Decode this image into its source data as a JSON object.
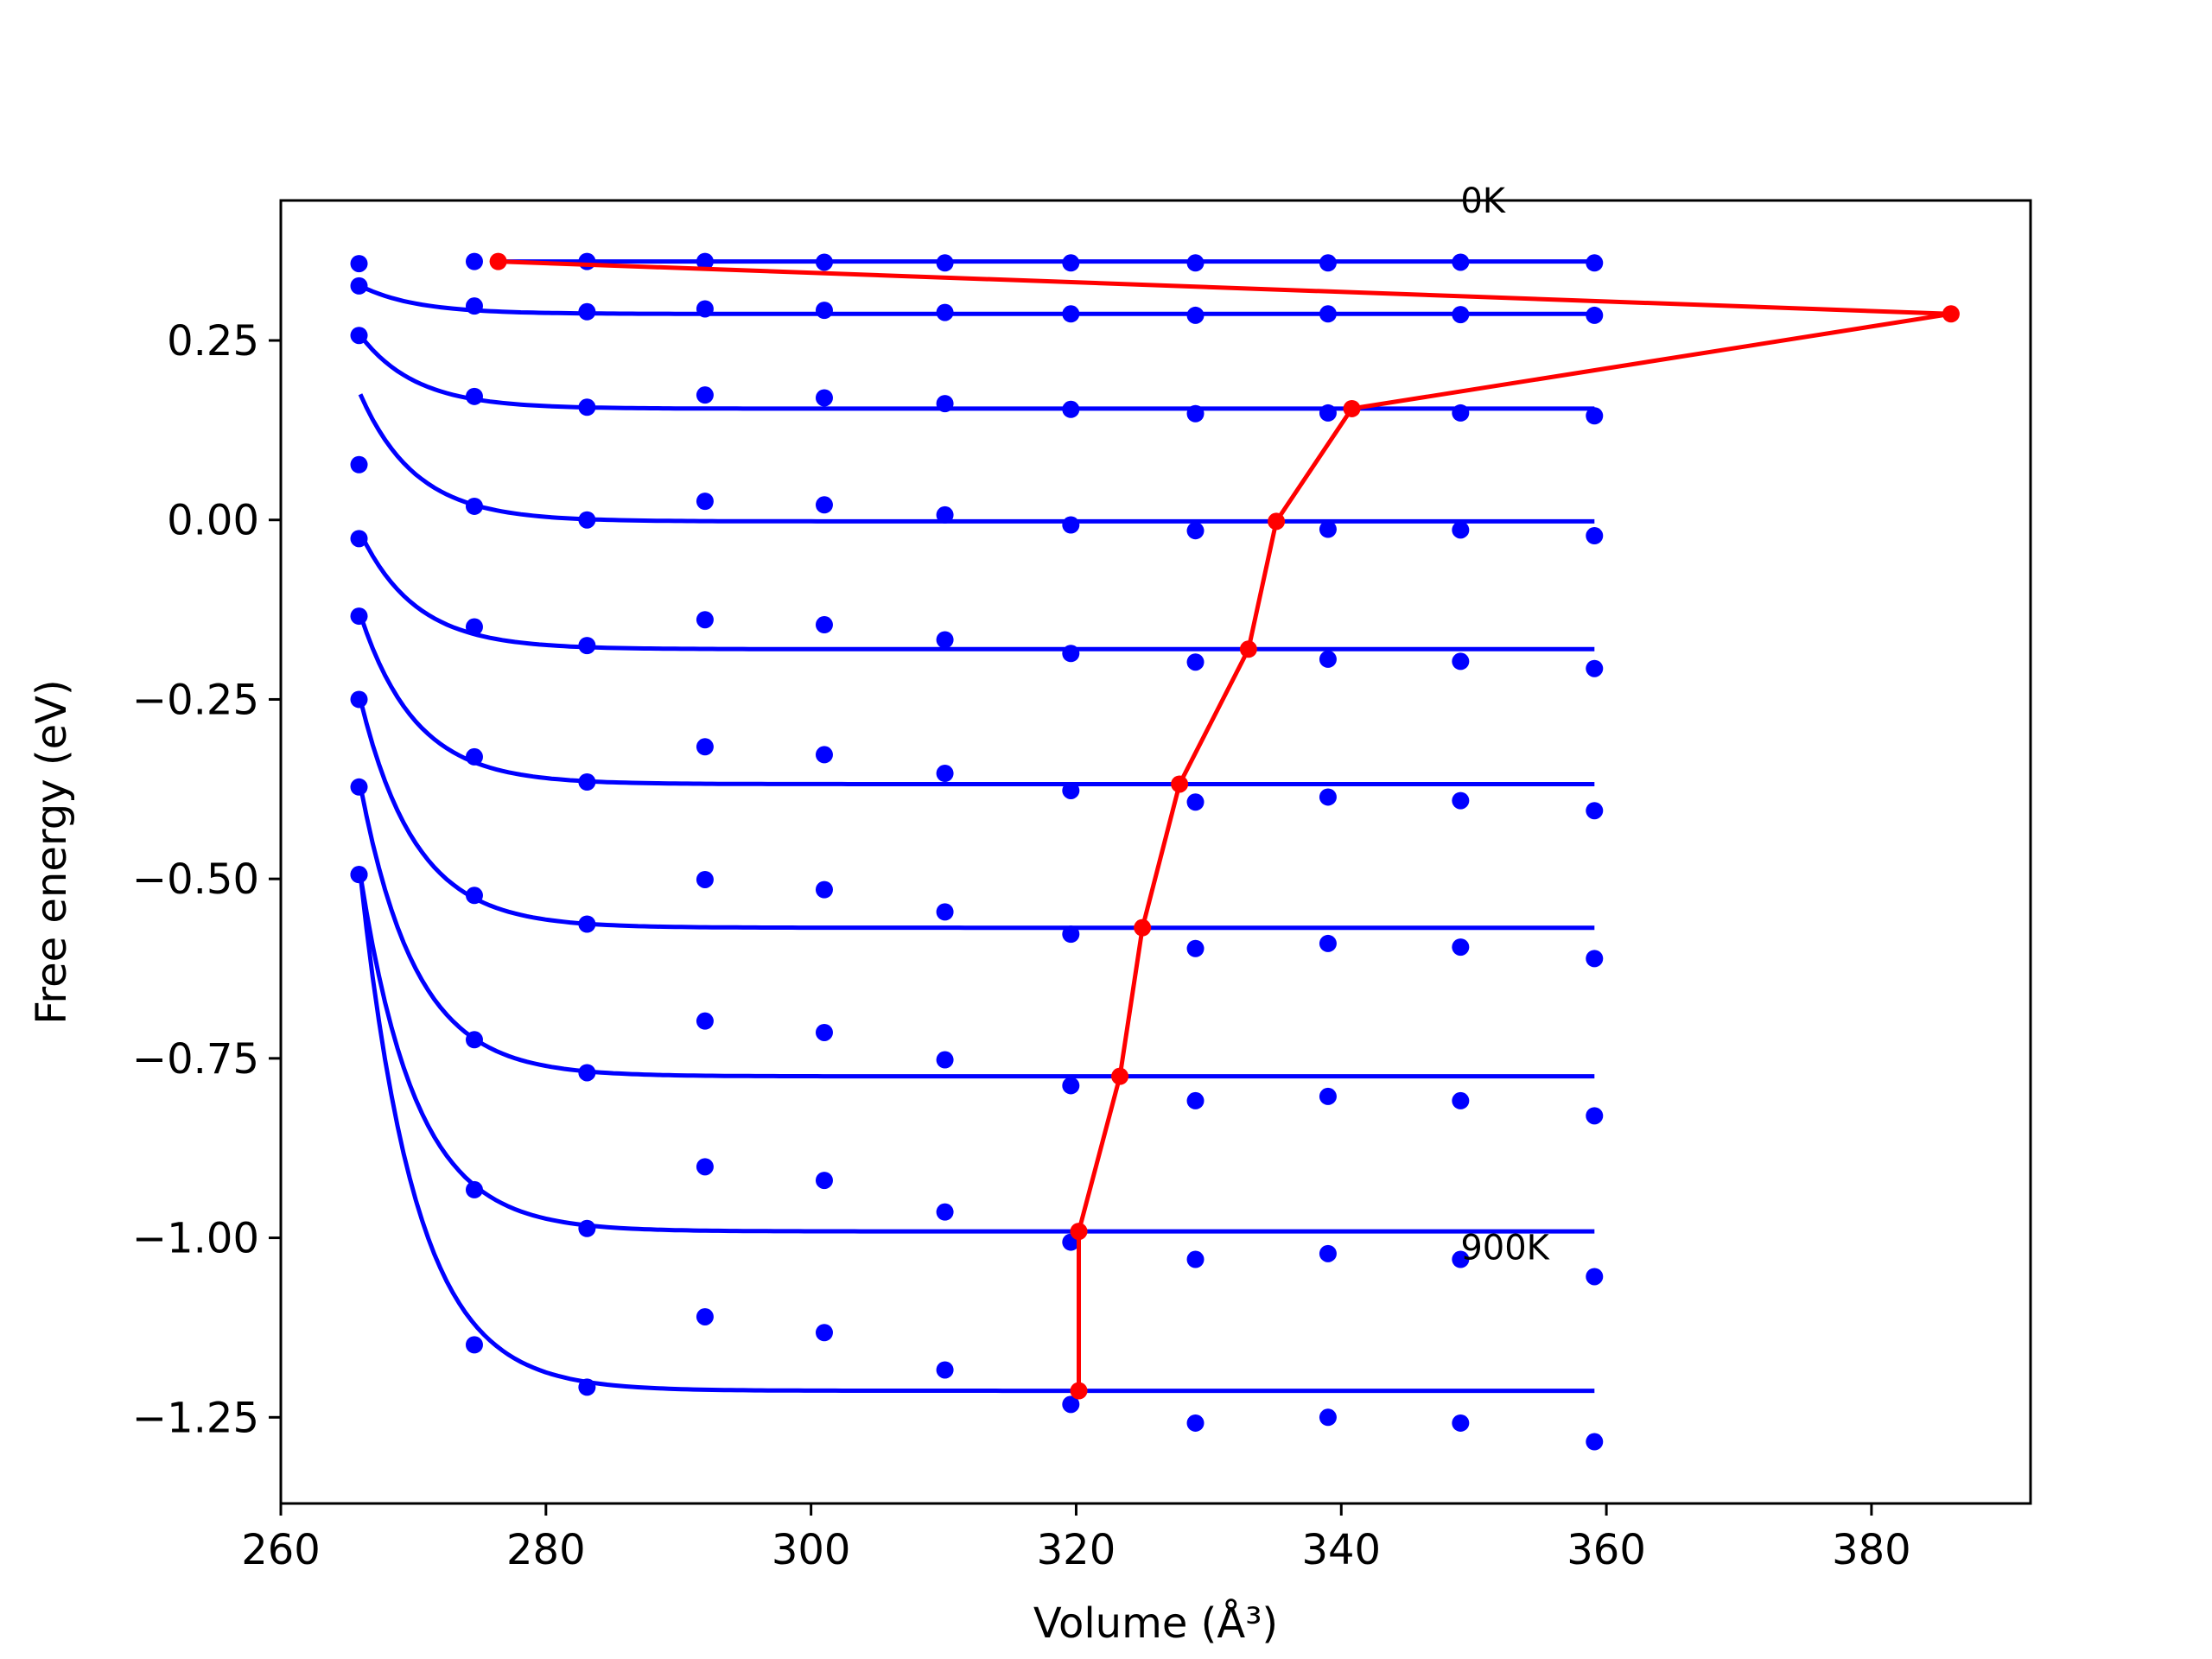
{
  "chart_data": {
    "type": "scatter",
    "xlabel": "Volume (Å³)",
    "ylabel": "Free energy (eV)",
    "xlim": [
      260,
      392
    ],
    "ylim": [
      -1.37,
      0.445
    ],
    "xticks": [
      260,
      280,
      300,
      320,
      340,
      360,
      380
    ],
    "xtick_labels": [
      "260",
      "280",
      "300",
      "320",
      "340",
      "360",
      "380"
    ],
    "yticks": [
      0.25,
      0.0,
      -0.25,
      -0.5,
      -0.75,
      -1.0,
      -1.25
    ],
    "ytick_labels": [
      "0.25",
      "0.00",
      "−0.25",
      "−0.50",
      "−0.75",
      "−1.00",
      "−1.25"
    ],
    "grid": false,
    "colors": {
      "points": "#0000ff",
      "fits": "#0000ff",
      "equilibrium": "#ff0000"
    },
    "annotations": [
      {
        "text": "0K",
        "x": 349,
        "y": 0.428
      },
      {
        "text": "900K",
        "x": 349,
        "y": -1.03
      }
    ],
    "volumes": [
      265.9,
      274.6,
      283.1,
      292.0,
      301.0,
      310.1,
      319.6,
      329.0,
      339.0,
      349.0,
      359.1
    ],
    "series": [
      {
        "values": [
          0.357,
          0.36,
          0.36,
          0.36,
          0.359,
          0.358,
          0.358,
          0.358,
          0.358,
          0.359,
          0.358
        ],
        "fit_floor": 0.36,
        "fit_v0": 276,
        "fit_amp": 0.0
      },
      {
        "values": [
          0.326,
          0.298,
          0.29,
          0.294,
          0.292,
          0.289,
          0.287,
          0.285,
          0.287,
          0.286,
          0.285
        ],
        "fit_floor": 0.287,
        "fit_v0": 266,
        "fit_amp": 0.039
      },
      {
        "values": [
          0.257,
          0.172,
          0.157,
          0.174,
          0.17,
          0.162,
          0.154,
          0.148,
          0.149,
          0.149,
          0.145
        ],
        "fit_floor": 0.155,
        "fit_v0": 266,
        "fit_amp": 0.102
      },
      {
        "values": [
          0.077,
          0.019,
          0.0,
          0.026,
          0.021,
          0.007,
          -0.007,
          -0.015,
          -0.013,
          -0.014,
          -0.022
        ],
        "fit_floor": -0.002,
        "fit_v0": 266,
        "fit_amp": 0.177
      },
      {
        "values": [
          -0.026,
          -0.149,
          -0.175,
          -0.139,
          -0.146,
          -0.167,
          -0.186,
          -0.198,
          -0.194,
          -0.197,
          -0.207
        ],
        "fit_floor": -0.18,
        "fit_v0": 266,
        "fit_amp": 0.162
      },
      {
        "values": [
          -0.134,
          -0.33,
          -0.365,
          -0.316,
          -0.327,
          -0.353,
          -0.377,
          -0.393,
          -0.386,
          -0.391,
          -0.405
        ],
        "fit_floor": -0.368,
        "fit_v0": 266,
        "fit_amp": 0.236
      },
      {
        "values": [
          -0.25,
          -0.523,
          -0.563,
          -0.501,
          -0.515,
          -0.546,
          -0.577,
          -0.597,
          -0.59,
          -0.595,
          -0.611
        ],
        "fit_floor": -0.568,
        "fit_v0": 266,
        "fit_amp": 0.318
      },
      {
        "values": [
          -0.372,
          -0.724,
          -0.77,
          -0.698,
          -0.714,
          -0.752,
          -0.788,
          -0.809,
          -0.803,
          -0.809,
          -0.83
        ],
        "fit_floor": -0.775,
        "fit_v0": 266,
        "fit_amp": 0.405
      },
      {
        "values": [
          -0.494,
          -0.933,
          -0.987,
          -0.901,
          -0.92,
          -0.964,
          -1.006,
          -1.03,
          -1.022,
          -1.03,
          -1.054
        ],
        "fit_floor": -0.991,
        "fit_v0": 266,
        "fit_amp": 0.497
      },
      {
        "values": [
          -0.494,
          -1.149,
          -1.208,
          -1.11,
          -1.132,
          -1.184,
          -1.232,
          -1.258,
          -1.25,
          -1.258,
          -1.284
        ],
        "fit_floor": -1.213,
        "fit_v0": 266,
        "fit_amp": 0.719
      }
    ],
    "equilibrium_line": {
      "x": [
        276.4,
        386.0,
        340.8,
        335.1,
        333.0,
        327.8,
        325.0,
        323.3,
        320.2,
        320.2
      ],
      "y": [
        0.36,
        0.287,
        0.155,
        -0.002,
        -0.18,
        -0.368,
        -0.568,
        -0.775,
        -0.991,
        -1.213
      ]
    }
  }
}
